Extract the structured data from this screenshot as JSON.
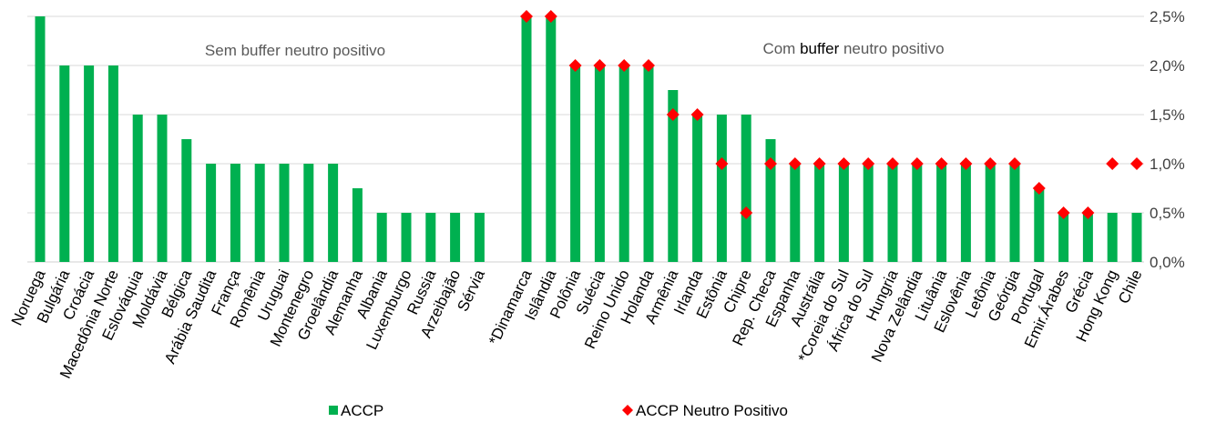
{
  "chart_data": {
    "type": "bar",
    "title": "",
    "xlabel": "",
    "ylabel": "",
    "ylim": [
      0,
      2.5
    ],
    "yticks": [
      "0,0%",
      "0,5%",
      "1,0%",
      "1,5%",
      "2,0%",
      "2,5%"
    ],
    "ytick_values": [
      0,
      0.5,
      1.0,
      1.5,
      2.0,
      2.5
    ],
    "grid": true,
    "legend_position": "bottom",
    "colors": {
      "bar": "#00B050",
      "marker": "#FF0000",
      "grid": "#D9D9D9",
      "text": "#404040"
    },
    "groups": [
      {
        "label": "Sem buffer neutro positivo",
        "categories": [
          "Noruega",
          "Bulgária",
          "Croácia",
          "Macedônia Norte",
          "Eslováquia",
          "Moldávia",
          "Bélgica",
          "Arábia Saudita",
          "França",
          "Romênia",
          "Uruguai",
          "Montenegro",
          "Groelândia",
          "Alemanha",
          "Albania",
          "Luxemburgo",
          "Russia",
          "Arzeibajão",
          "Sérvia"
        ],
        "accp": [
          2.5,
          2.0,
          2.0,
          2.0,
          1.5,
          1.5,
          1.25,
          1.0,
          1.0,
          1.0,
          1.0,
          1.0,
          1.0,
          0.75,
          0.5,
          0.5,
          0.5,
          0.5,
          0.5
        ]
      },
      {
        "label_parts": [
          "Com ",
          "buffer",
          " neutro positivo"
        ],
        "categories": [
          "*Dinamarca",
          "Islândia",
          "Polônia",
          "Suécia",
          "Reino Unido",
          "Holanda",
          "Armênia",
          "Irlanda",
          "Estônia",
          "Chipre",
          "Rep. Checa",
          "Espanha",
          "Austrália",
          "*Coreia do Sul",
          "África do Sul",
          "Hungria",
          "Nova Zelândia",
          "Lituânia",
          "Eslovênia",
          "Letônia",
          "Geórgia",
          "Portugal",
          "Emir.Árabes",
          "Grécia",
          "Hong Kong",
          "Chile"
        ],
        "accp": [
          2.5,
          2.5,
          2.0,
          2.0,
          2.0,
          2.0,
          1.75,
          1.5,
          1.5,
          1.5,
          1.25,
          1.0,
          1.0,
          1.0,
          1.0,
          1.0,
          1.0,
          1.0,
          1.0,
          1.0,
          1.0,
          0.75,
          0.5,
          0.5,
          0.5,
          0.5
        ],
        "accp_neutro_positivo": [
          2.5,
          2.5,
          2.0,
          2.0,
          2.0,
          2.0,
          1.5,
          1.5,
          1.0,
          0.5,
          1.0,
          1.0,
          1.0,
          1.0,
          1.0,
          1.0,
          1.0,
          1.0,
          1.0,
          1.0,
          1.0,
          0.75,
          0.5,
          0.5,
          1.0,
          1.0
        ]
      }
    ],
    "series": [
      {
        "name": "ACCP",
        "type": "bar"
      },
      {
        "name": "ACCP Neutro Positivo",
        "type": "marker"
      }
    ]
  }
}
